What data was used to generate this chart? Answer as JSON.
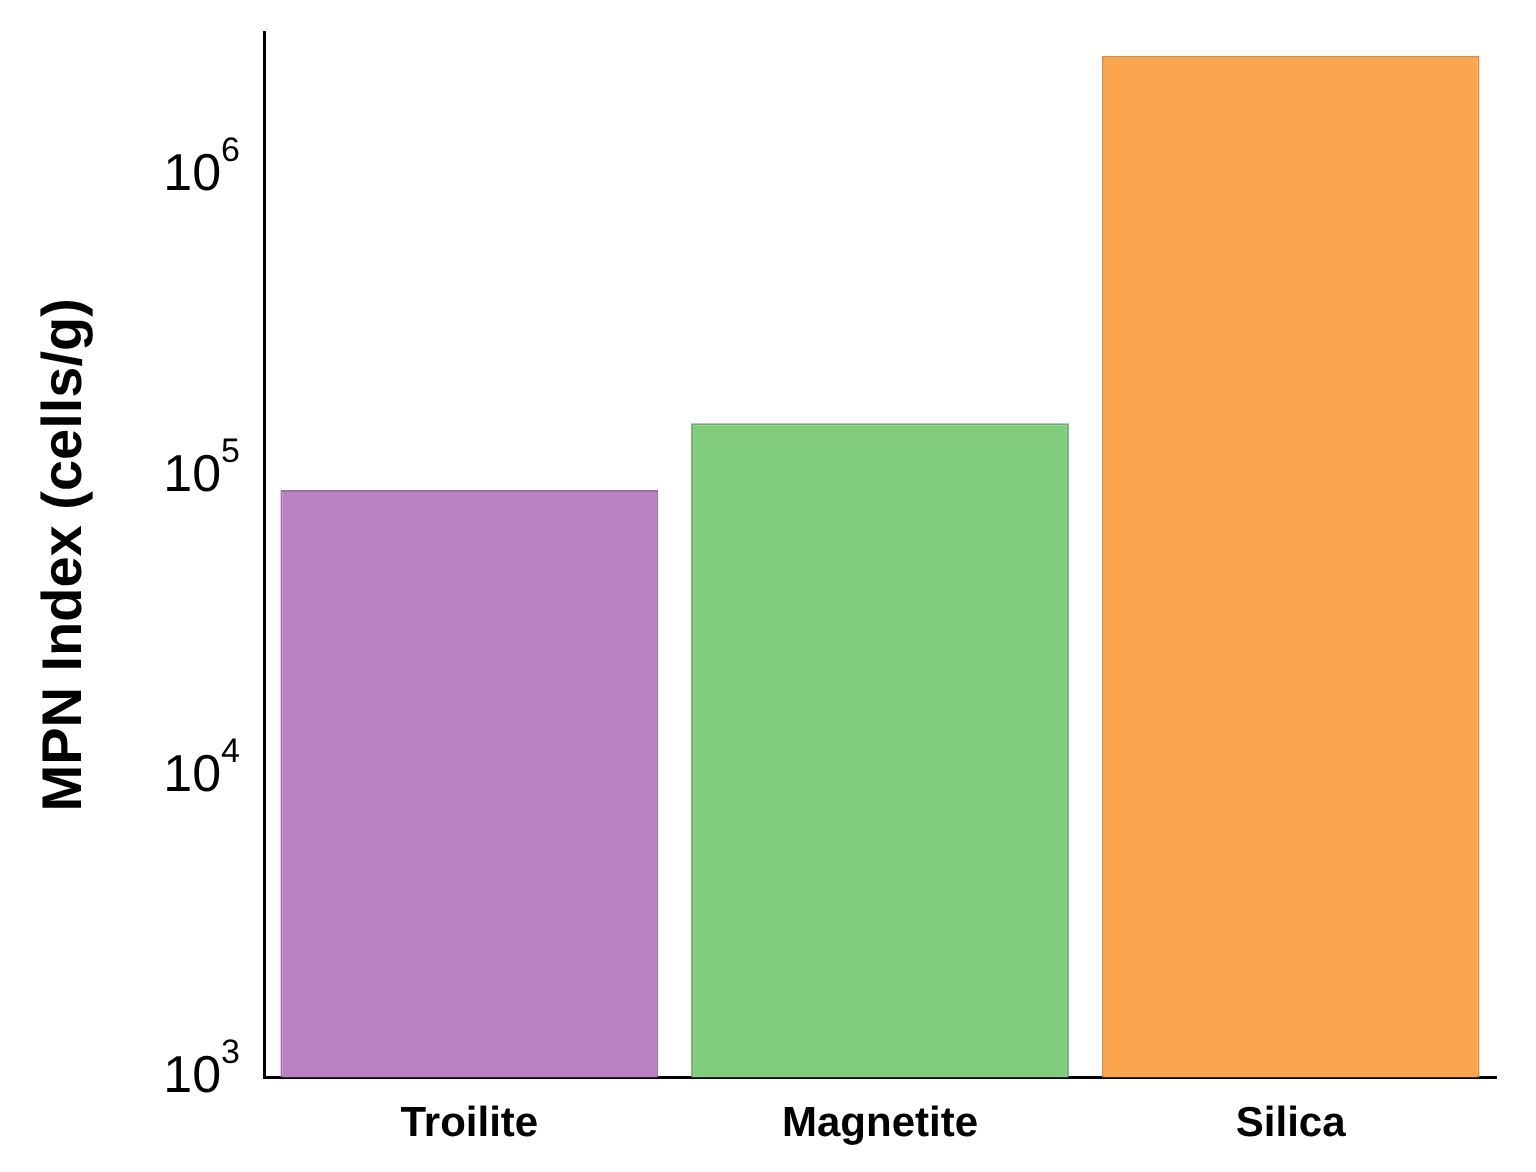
{
  "chart_data": {
    "type": "bar",
    "ylabel": "MPN Index (cells/g)",
    "categories": [
      "Troilite",
      "Magnetite",
      "Silica"
    ],
    "values": [
      90000,
      150000,
      2500000
    ],
    "colors": [
      "#bb82c3",
      "#80cd7e",
      "#fba54f"
    ],
    "log": true,
    "ylim": [
      1000,
      3000000
    ],
    "yticks": [
      {
        "value": 1000,
        "label": "10$^{3}$"
      },
      {
        "value": 10000,
        "label": "10$^{4}$"
      },
      {
        "value": 100000,
        "label": "10$^{5}$"
      },
      {
        "value": 1000000,
        "label": "10$^{6}$"
      }
    ],
    "grid": false,
    "legend": false
  }
}
